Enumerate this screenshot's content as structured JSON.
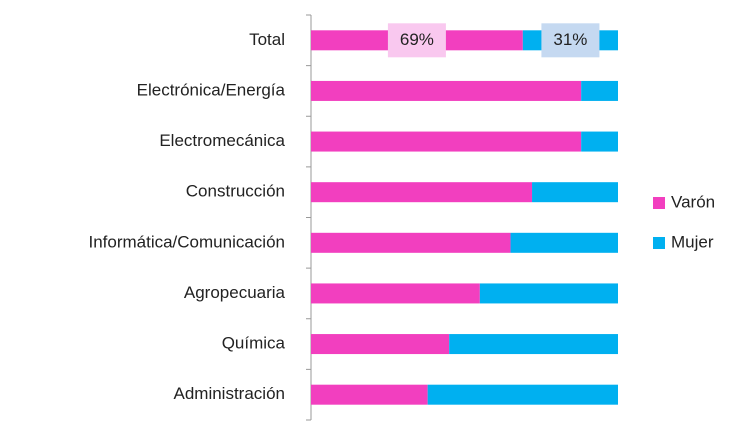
{
  "chart_data": {
    "type": "stacked-bar-horizontal",
    "categories": [
      "Total",
      "Electrónica/Energía",
      "Electromecánica",
      "Construcción",
      "Informática/Comunicación",
      "Agropecuaria",
      "Química",
      "Administración"
    ],
    "series": [
      {
        "name": "Varón",
        "color": "#f23fbf",
        "values": [
          69,
          88,
          88,
          72,
          65,
          55,
          45,
          38
        ],
        "value_labels": [
          "69%",
          null,
          null,
          null,
          null,
          null,
          null,
          null
        ]
      },
      {
        "name": "Mujer",
        "color": "#00b0f0",
        "values": [
          31,
          12,
          12,
          28,
          35,
          45,
          55,
          62
        ],
        "value_labels": [
          "31%",
          null,
          null,
          null,
          null,
          null,
          null,
          null
        ]
      }
    ],
    "xlim": [
      0,
      100
    ],
    "legend": "right"
  }
}
